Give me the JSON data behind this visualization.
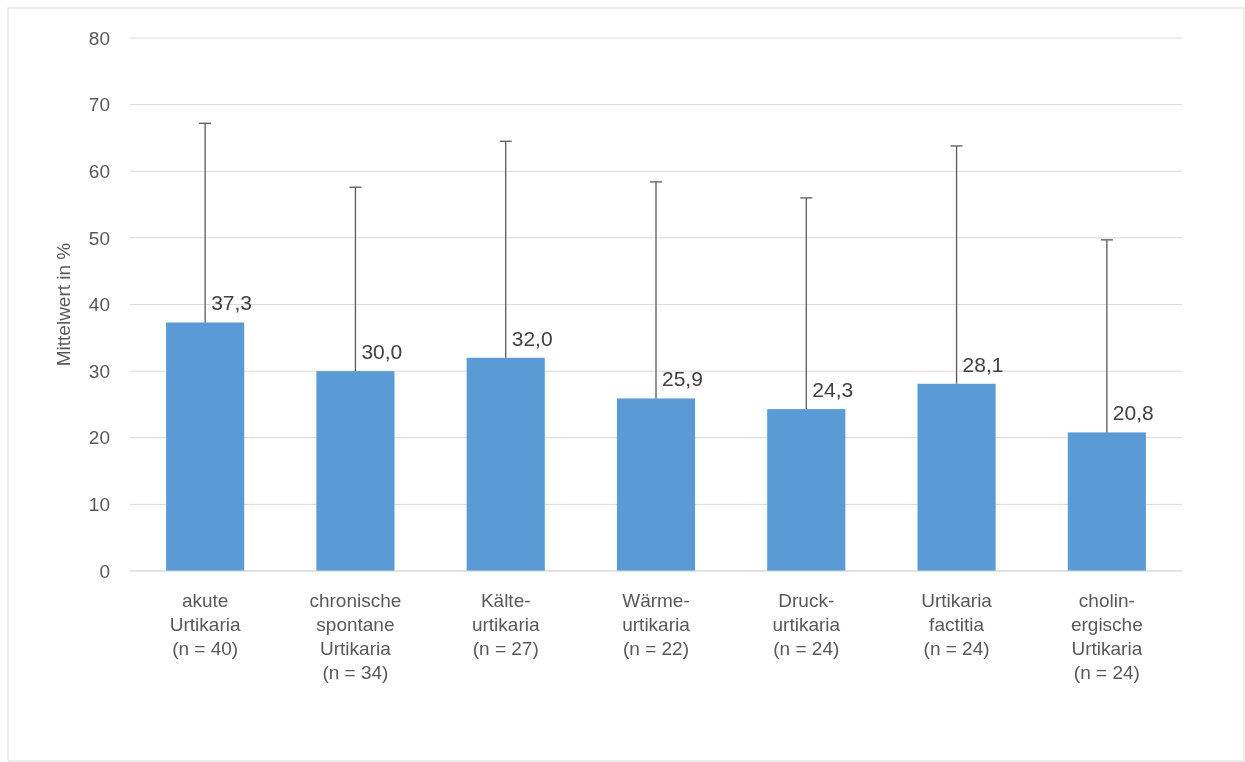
{
  "chart_data": {
    "type": "bar",
    "ylabel": "Mittelwert in %",
    "categories": [
      "akute\nUrtikaria\n(n = 40)",
      "chronische\nspontane\nUrtikaria\n(n = 34)",
      "Kälte-\nurtikaria\n(n = 27)",
      "Wärme-\nurtikaria\n(n = 22)",
      "Druck-\nurtikaria\n(n = 24)",
      "Urtikaria\nfactitia\n(n = 24)",
      "cholin-\nergische\nUrtikaria\n(n = 24)"
    ],
    "values": [
      37.3,
      30.0,
      32.0,
      25.9,
      24.3,
      28.1,
      20.8
    ],
    "value_labels": [
      "37,3",
      "30,0",
      "32,0",
      "25,9",
      "24,3",
      "28,1",
      "20,8"
    ],
    "errors": [
      [
        37.3,
        67.2
      ],
      [
        30.0,
        57.6
      ],
      [
        32.0,
        64.5
      ],
      [
        25.9,
        58.4
      ],
      [
        24.3,
        56.0
      ],
      [
        28.1,
        63.8
      ],
      [
        20.8,
        49.7
      ]
    ],
    "color": "#5b9bd5",
    "ylim": [
      0,
      80
    ],
    "yticks": [
      0,
      10,
      20,
      30,
      40,
      50,
      60,
      70,
      80
    ],
    "grid": "y"
  }
}
